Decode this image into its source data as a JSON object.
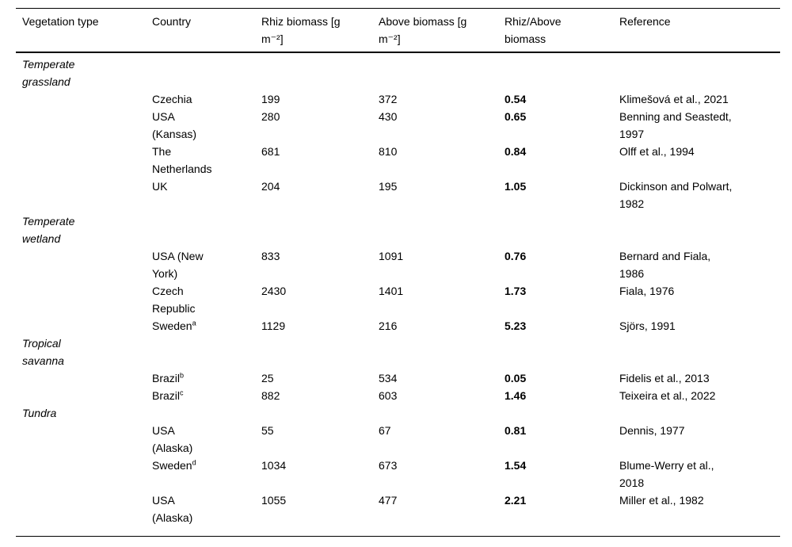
{
  "page": {
    "background_color": "#ffffff",
    "text_color": "#000000",
    "rule_color": "#000000"
  },
  "table": {
    "columns": [
      {
        "label": "Vegetation type"
      },
      {
        "label": "Country"
      },
      {
        "label": "Rhiz biomass [g\nm⁻²]"
      },
      {
        "label": "Above biomass [g\nm⁻²]"
      },
      {
        "label": "Rhiz/Above\nbiomass"
      },
      {
        "label": "Reference"
      }
    ],
    "rows": [
      {
        "type": "group",
        "vegetation": "Temperate\ngrassland"
      },
      {
        "type": "data",
        "country": "Czechia",
        "country_sup": "",
        "rhiz": "199",
        "above": "372",
        "ratio": "0.54",
        "reference": "Klimešová et al., 2021"
      },
      {
        "type": "data",
        "country": "USA\n(Kansas)",
        "country_sup": "",
        "rhiz": "280",
        "above": "430",
        "ratio": "0.65",
        "reference": "Benning and Seastedt,\n1997"
      },
      {
        "type": "data",
        "country": "The\nNetherlands",
        "country_sup": "",
        "rhiz": "681",
        "above": "810",
        "ratio": "0.84",
        "reference": "Olff et al., 1994"
      },
      {
        "type": "data",
        "country": "UK",
        "country_sup": "",
        "rhiz": "204",
        "above": "195",
        "ratio": "1.05",
        "reference": "Dickinson and Polwart,\n1982"
      },
      {
        "type": "group",
        "vegetation": "Temperate\nwetland"
      },
      {
        "type": "data",
        "country": "USA (New\nYork)",
        "country_sup": "",
        "rhiz": "833",
        "above": "1091",
        "ratio": "0.76",
        "reference": "Bernard and Fiala,\n1986"
      },
      {
        "type": "data",
        "country": "Czech\nRepublic",
        "country_sup": "",
        "rhiz": "2430",
        "above": "1401",
        "ratio": "1.73",
        "reference": "Fiala, 1976"
      },
      {
        "type": "data",
        "country": "Sweden",
        "country_sup": "a",
        "rhiz": "1129",
        "above": "216",
        "ratio": "5.23",
        "reference": "Sjörs, 1991"
      },
      {
        "type": "group",
        "vegetation": "Tropical\nsavanna"
      },
      {
        "type": "data",
        "country": "Brazil",
        "country_sup": "b",
        "rhiz": "25",
        "above": "534",
        "ratio": "0.05",
        "reference": "Fidelis et al., 2013"
      },
      {
        "type": "data",
        "country": "Brazil",
        "country_sup": "c",
        "rhiz": "882",
        "above": "603",
        "ratio": "1.46",
        "reference": "Teixeira et al., 2022"
      },
      {
        "type": "group",
        "vegetation": "Tundra"
      },
      {
        "type": "data",
        "country": "USA\n(Alaska)",
        "country_sup": "",
        "rhiz": "55",
        "above": "67",
        "ratio": "0.81",
        "reference": "Dennis, 1977"
      },
      {
        "type": "data",
        "country": "Sweden",
        "country_sup": "d",
        "rhiz": "1034",
        "above": "673",
        "ratio": "1.54",
        "reference": "Blume-Werry et al.,\n2018"
      },
      {
        "type": "data",
        "country": "USA\n(Alaska)",
        "country_sup": "",
        "rhiz": "1055",
        "above": "477",
        "ratio": "2.21",
        "reference": "Miller et al., 1982"
      }
    ]
  }
}
